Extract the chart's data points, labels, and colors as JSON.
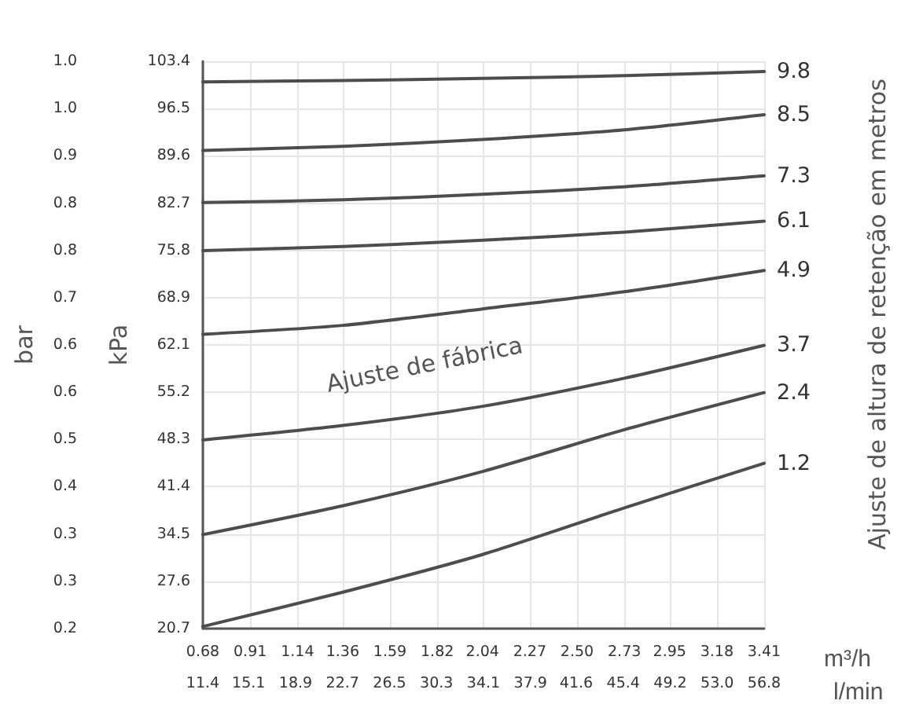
{
  "chart_data": {
    "type": "line",
    "x": [
      0.68,
      1.36,
      2.04,
      2.73,
      3.41
    ],
    "series": [
      {
        "name": "9.8",
        "color": "#4d4d4d",
        "values": [
          100.4,
          100.6,
          100.9,
          101.3,
          101.9
        ]
      },
      {
        "name": "8.5",
        "color": "#4d4d4d",
        "values": [
          90.4,
          91.0,
          92.0,
          93.4,
          95.6
        ]
      },
      {
        "name": "7.3",
        "color": "#4d4d4d",
        "values": [
          82.8,
          83.2,
          84.0,
          85.1,
          86.7
        ]
      },
      {
        "name": "6.1",
        "color": "#4d4d4d",
        "values": [
          75.8,
          76.4,
          77.3,
          78.5,
          80.1
        ]
      },
      {
        "name": "4.9",
        "color": "#4d4d4d",
        "values": [
          63.6,
          64.9,
          67.3,
          69.8,
          72.9
        ]
      },
      {
        "name": "3.7",
        "color": "#4d4d4d",
        "values": [
          48.2,
          50.3,
          53.1,
          57.2,
          62.0
        ]
      },
      {
        "name": "2.4",
        "color": "#4d4d4d",
        "values": [
          34.4,
          38.6,
          43.6,
          49.7,
          55.1
        ]
      },
      {
        "name": "1.2",
        "color": "#4d4d4d",
        "values": [
          21.0,
          26.0,
          31.5,
          38.3,
          44.8
        ]
      }
    ],
    "xlabel": "m³/h",
    "x2label": "l/min",
    "ylabel": "kPa",
    "y2label": "bar",
    "legend_title": "Ajuste de altura de retenção em metros",
    "annotations": [
      "Ajuste de fábrica"
    ],
    "xlim": [
      0.68,
      3.41
    ],
    "xticks": [
      0.68,
      0.91,
      1.14,
      1.36,
      1.59,
      1.82,
      2.04,
      2.27,
      {
        "value": 2.5,
        "label": "2.50"
      },
      2.73,
      2.95,
      3.18,
      3.41
    ],
    "x2lim": [
      11.4,
      56.8
    ],
    "x2ticks": [
      11.4,
      15.1,
      18.9,
      22.7,
      26.5,
      30.3,
      34.1,
      37.9,
      41.6,
      45.4,
      49.2,
      {
        "value": 53.0,
        "label": "53.0"
      },
      56.8
    ],
    "ylim": [
      20.7,
      103.4
    ],
    "yticks": [
      20.7,
      27.6,
      34.5,
      41.4,
      48.3,
      55.2,
      62.1,
      68.9,
      75.8,
      82.7,
      89.6,
      96.5,
      103.4
    ],
    "y2lim": [
      0.207,
      1.034
    ],
    "y2ticks": [
      {
        "value": 0.207,
        "label": "0.2"
      },
      {
        "value": 0.276,
        "label": "0.3"
      },
      {
        "value": 0.345,
        "label": "0.3"
      },
      {
        "value": 0.414,
        "label": "0.4"
      },
      {
        "value": 0.483,
        "label": "0.5"
      },
      {
        "value": 0.552,
        "label": "0.6"
      },
      {
        "value": 0.621,
        "label": "0.6"
      },
      {
        "value": 0.689,
        "label": "0.7"
      },
      {
        "value": 0.758,
        "label": "0.8"
      },
      {
        "value": 0.827,
        "label": "0.8"
      },
      {
        "value": 0.896,
        "label": "0.9"
      },
      {
        "value": 0.965,
        "label": "1.0"
      },
      {
        "value": 1.034,
        "label": "1.0"
      }
    ],
    "grid": true,
    "marker": "none",
    "line_style": "solid"
  }
}
